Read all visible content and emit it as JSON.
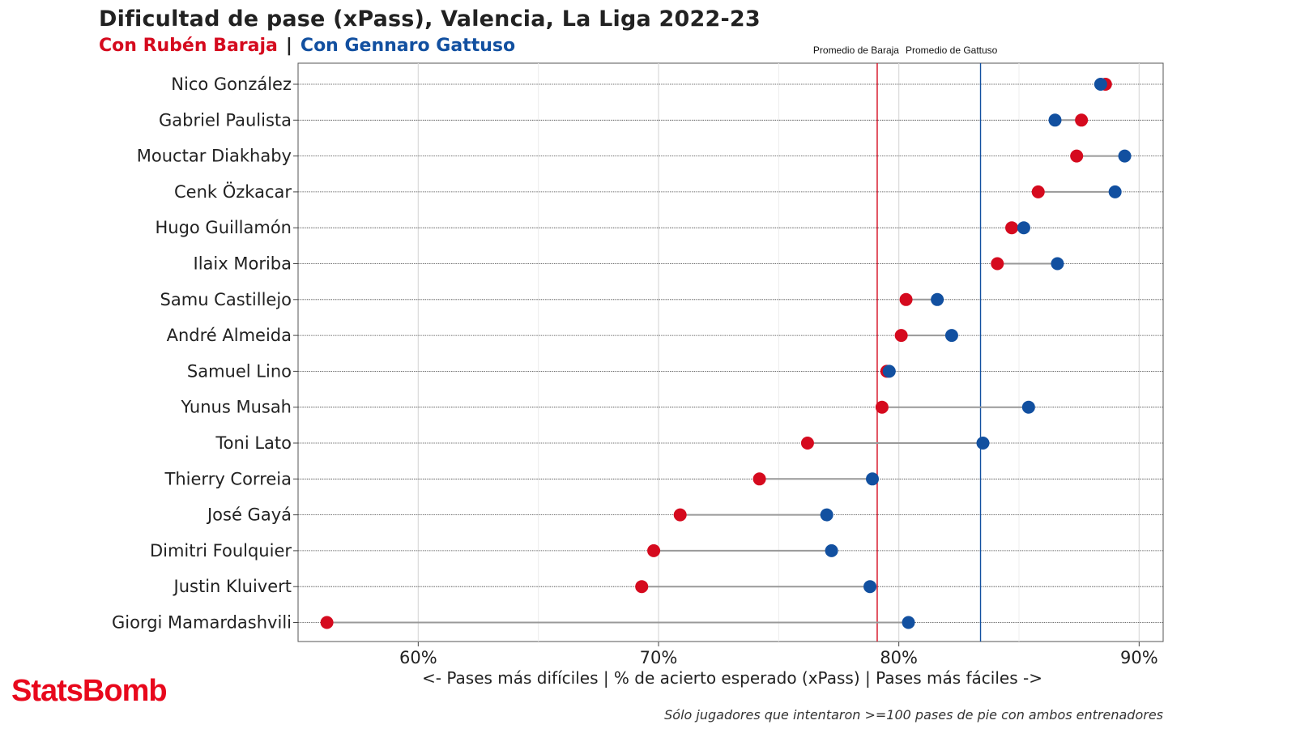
{
  "title": "Dificultad de pase (xPass), Valencia, La Liga 2022-23",
  "subtitle": {
    "series_a": "Con Rubén Baraja",
    "separator": "|",
    "series_b": "Con Gennaro Gattuso"
  },
  "brand": "StatsBomb",
  "footnote": "Sólo jugadores que intentaron >=100 pases de pie con ambos entrenadores",
  "colors": {
    "baraja": "#d50a1e",
    "gattuso": "#1250a0",
    "connector": "#999999",
    "grid": "#d9d9d9"
  },
  "chart_data": {
    "type": "scatter",
    "style": "dumbbell",
    "title": "Dificultad de pase (xPass), Valencia, La Liga 2022-23",
    "xlabel": "<- Pases más difíciles | % de acierto esperado (xPass) | Pases más fáciles ->",
    "ylabel": "",
    "xlim": [
      55,
      91
    ],
    "x_ticks": [
      60,
      70,
      80,
      90
    ],
    "x_tick_labels": [
      "60%",
      "70%",
      "80%",
      "90%"
    ],
    "grid": true,
    "legend": "top (colored subtitle)",
    "categories": [
      "Nico González",
      "Gabriel Paulista",
      "Mouctar Diakhaby",
      "Cenk Özkacar",
      "Hugo Guillamón",
      "Ilaix Moriba",
      "Samu Castillejo",
      "André Almeida",
      "Samuel Lino",
      "Yunus Musah",
      "Toni Lato",
      "Thierry Correia",
      "José Gayá",
      "Dimitri Foulquier",
      "Justin Kluivert",
      "Giorgi Mamardashvili"
    ],
    "series": [
      {
        "name": "Con Rubén Baraja",
        "color": "#d50a1e",
        "values": [
          88.6,
          87.6,
          87.4,
          85.8,
          84.7,
          84.1,
          80.3,
          80.1,
          79.5,
          79.3,
          76.2,
          74.2,
          70.9,
          69.8,
          69.3,
          56.2
        ]
      },
      {
        "name": "Con Gennaro Gattuso",
        "color": "#1250a0",
        "values": [
          88.4,
          86.5,
          89.4,
          89.0,
          85.2,
          86.6,
          81.6,
          82.2,
          79.6,
          85.4,
          83.5,
          78.9,
          77.0,
          77.2,
          78.8,
          80.4
        ]
      }
    ],
    "reference_lines": [
      {
        "label": "Promedio de Baraja",
        "value": 79.1,
        "color": "#d50a1e"
      },
      {
        "label": "Promedio de Gattuso",
        "value": 83.4,
        "color": "#1250a0"
      }
    ]
  }
}
